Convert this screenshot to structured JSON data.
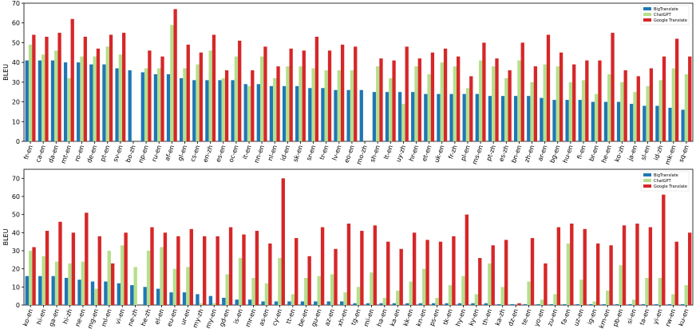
{
  "chart_data": [
    {
      "type": "bar",
      "ylabel": "BLEU",
      "ylim": [
        0,
        70
      ],
      "yticks": [
        0,
        10,
        20,
        30,
        40,
        50,
        60,
        70
      ],
      "legend": "upper right",
      "categories": [
        "fr-en",
        "ca-en",
        "da-en",
        "mt-en",
        "ro-en",
        "de-en",
        "pt-en",
        "sv-en",
        "bo-zh",
        "np-en",
        "ru-en",
        "af-en",
        "gl-en",
        "cs-en",
        "en-zh",
        "es-en",
        "oc-en",
        "it-en",
        "nn-en",
        "nl-en",
        "id-en",
        "sk-en",
        "sr-en",
        "tr-en",
        "lv-en",
        "eo-en",
        "mo-zh",
        "sh-en",
        "lt-en",
        "uy-zh",
        "hr-en",
        "et-en",
        "uk-en",
        "fr-zh",
        "pl-en",
        "ms-en",
        "pt-zh",
        "es-zh",
        "bn-en",
        "zh-en",
        "ar-en",
        "bg-en",
        "hu-en",
        "fi-en",
        "br-en",
        "he-en",
        "ko-zh",
        "ja-en",
        "sl-en",
        "id-zh",
        "mk-en",
        "sq-en"
      ],
      "series": [
        {
          "name": "BigTranslate",
          "color": "#1f77b4",
          "values": [
            41,
            41,
            41,
            40,
            40,
            39,
            39,
            37,
            36,
            35,
            34,
            34,
            32,
            31,
            31,
            31,
            31,
            29,
            29,
            28,
            28,
            28,
            27,
            27,
            26,
            26,
            26,
            25,
            25,
            25,
            25,
            24,
            24,
            24,
            24,
            24,
            23,
            23,
            23,
            23,
            22,
            21,
            21,
            21,
            20,
            20,
            20,
            19,
            18,
            18,
            17,
            16
          ]
        },
        {
          "name": "ChatGPT",
          "color": "#b5df8c",
          "values": [
            49,
            44,
            46,
            32,
            43,
            43,
            48,
            44,
            0,
            37,
            37,
            59,
            37,
            39,
            46,
            32,
            43,
            28,
            43,
            32,
            38,
            38,
            37,
            36,
            36,
            36,
            0,
            38,
            32,
            19,
            38,
            34,
            40,
            38,
            27,
            41,
            38,
            32,
            41,
            30,
            39,
            38,
            30,
            31,
            24,
            34,
            30,
            25,
            28,
            31,
            37,
            34
          ]
        },
        {
          "name": "Google Translate",
          "color": "#d62728",
          "values": [
            54,
            53,
            55,
            62,
            53,
            47,
            54,
            55,
            0,
            46,
            43,
            67,
            49,
            45,
            54,
            36,
            51,
            36,
            48,
            38,
            47,
            46,
            53,
            46,
            49,
            48,
            0,
            42,
            41,
            48,
            42,
            45,
            47,
            43,
            33,
            50,
            42,
            36,
            50,
            38,
            54,
            45,
            39,
            41,
            41,
            55,
            36,
            33,
            37,
            43,
            52,
            43
          ]
        }
      ]
    },
    {
      "type": "bar",
      "ylabel": "BLEU",
      "ylim": [
        0,
        75
      ],
      "yticks": [
        0,
        10,
        20,
        30,
        40,
        50,
        60,
        70
      ],
      "legend": "upper right",
      "categories": [
        "ko-en",
        "hi-en",
        "ga-en",
        "hi-zh",
        "ne-en",
        "mg-en",
        "ml-en",
        "vi-en",
        "ne-zh",
        "he-zh",
        "el-en",
        "eu-en",
        "ur-en",
        "my-zh",
        "my-en",
        "gd-en",
        "is-en",
        "mr-en",
        "as-en",
        "cy-en",
        "tt-en",
        "be-en",
        "gu-en",
        "az-en",
        "xh-en",
        "tg-en",
        "mi-en",
        "ha-en",
        "ka-en",
        "kk-en",
        "kn-en",
        "ps-en",
        "tk-en",
        "hy-en",
        "ky-en",
        "th-en",
        "ka-zh",
        "dz-en",
        "te-en",
        "yo-en",
        "zu-en",
        "fa-en",
        "uz-en",
        "ig-en",
        "km-en",
        "pb-en",
        "si-en",
        "ta-en",
        "yi-en",
        "rw-en",
        "ku-en"
      ],
      "series": [
        {
          "name": "BigTranslate",
          "color": "#1f77b4",
          "values": [
            16,
            16,
            16,
            15,
            14,
            13,
            13,
            12,
            11,
            10,
            9,
            7,
            7,
            6,
            5,
            4,
            3,
            3,
            2,
            2,
            2,
            2,
            2,
            2,
            2,
            1,
            1,
            1,
            1,
            1,
            1,
            1,
            1,
            1,
            1,
            1,
            0.5,
            0.5,
            0.5,
            0.5,
            0.5,
            0.5,
            0.5,
            0.5,
            0.5,
            0.5,
            0.5,
            0.5,
            0.5,
            0.5,
            0.5
          ]
        },
        {
          "name": "ChatGPT",
          "color": "#b5df8c",
          "values": [
            30,
            27,
            24,
            23,
            24,
            9,
            30,
            33,
            21,
            30,
            32,
            20,
            21,
            1,
            1,
            17,
            26,
            15,
            12,
            26,
            6,
            15,
            16,
            17,
            7,
            10,
            18,
            4,
            8,
            13,
            20,
            4,
            11,
            16,
            6,
            23,
            10,
            0,
            13,
            3,
            6,
            34,
            14,
            2,
            8,
            22,
            3,
            15,
            15,
            6,
            11
          ]
        },
        {
          "name": "Google Translate",
          "color": "#d62728",
          "values": [
            32,
            41,
            46,
            40,
            51,
            38,
            23,
            40,
            0,
            43,
            40,
            38,
            42,
            38,
            38,
            43,
            39,
            41,
            34,
            70,
            37,
            27,
            43,
            31,
            45,
            41,
            44,
            35,
            31,
            40,
            36,
            35,
            38,
            50,
            26,
            33,
            36,
            1,
            37,
            23,
            43,
            45,
            42,
            34,
            33,
            44,
            45,
            43,
            61,
            35,
            40
          ]
        }
      ]
    }
  ]
}
